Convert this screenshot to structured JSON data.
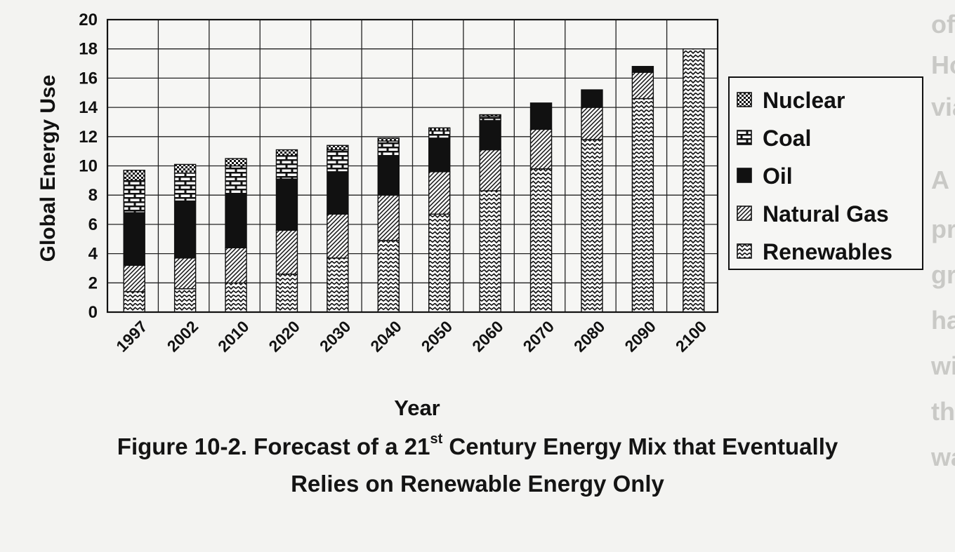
{
  "chart_data": {
    "type": "bar",
    "stacked": true,
    "categories": [
      "1997",
      "2002",
      "2010",
      "2020",
      "2030",
      "2040",
      "2050",
      "2060",
      "2070",
      "2080",
      "2090",
      "2100"
    ],
    "series": [
      {
        "name": "Renewables",
        "pattern": "zigzag",
        "values": [
          1.4,
          1.6,
          2.0,
          2.6,
          3.7,
          4.9,
          6.7,
          8.3,
          9.8,
          11.8,
          14.6,
          18.0
        ]
      },
      {
        "name": "Natural Gas",
        "pattern": "diagonal",
        "values": [
          1.8,
          2.1,
          2.4,
          3.0,
          3.0,
          3.1,
          2.9,
          2.8,
          2.7,
          2.2,
          1.8,
          0
        ]
      },
      {
        "name": "Oil",
        "pattern": "solid",
        "values": [
          3.6,
          3.9,
          3.7,
          3.5,
          2.9,
          2.7,
          2.3,
          2.0,
          1.8,
          1.2,
          0.4,
          0
        ]
      },
      {
        "name": "Coal",
        "pattern": "brick",
        "values": [
          2.2,
          1.9,
          1.9,
          1.6,
          1.5,
          1.0,
          0.5,
          0.3,
          0,
          0,
          0,
          0
        ]
      },
      {
        "name": "Nuclear",
        "pattern": "checker",
        "values": [
          0.7,
          0.6,
          0.5,
          0.4,
          0.3,
          0.2,
          0.2,
          0.1,
          0,
          0,
          0,
          0
        ]
      }
    ],
    "legend_order": [
      "Nuclear",
      "Coal",
      "Oil",
      "Natural Gas",
      "Renewables"
    ],
    "legend_position": "right",
    "xlabel": "Year",
    "ylabel": "Global Energy Use",
    "ylim": [
      0,
      20
    ],
    "yticks": [
      0,
      2,
      4,
      6,
      8,
      10,
      12,
      14,
      16,
      18,
      20
    ],
    "grid": true
  },
  "caption": {
    "line1_before": "Figure 10-2. Forecast of a 21",
    "line1_sup": "st",
    "line1_after": " Century Energy Mix that Eventually",
    "line2": "Relies on Renewable Energy Only"
  },
  "background_text": {
    "lines": [
      "of a",
      "Hodg",
      "viable",
      "A",
      "proven",
      "greenh",
      "have",
      "with",
      "the",
      "waste"
    ]
  },
  "colors": {
    "ink": "#111111",
    "paper": "#f3f3f1",
    "ghost": "#c9c9c6"
  }
}
